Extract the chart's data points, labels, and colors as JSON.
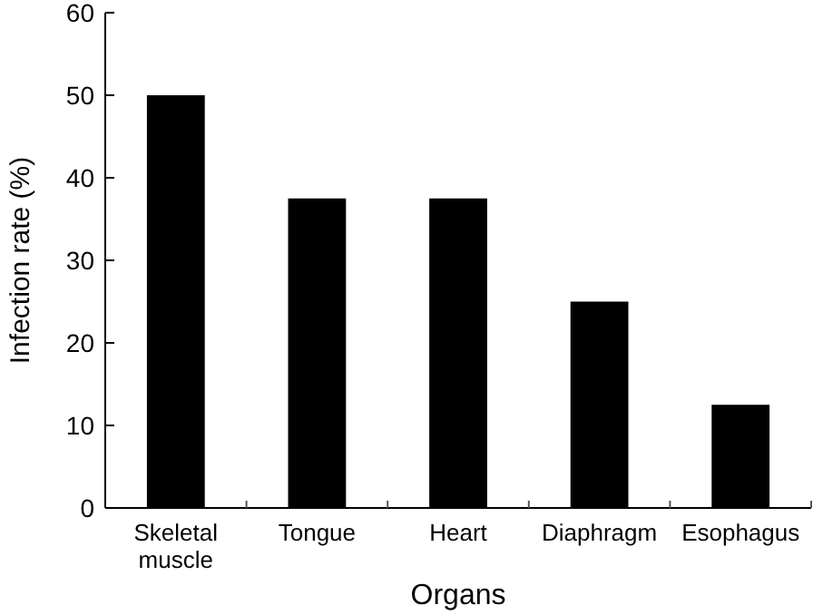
{
  "chart_data": {
    "type": "bar",
    "xlabel": "Organs",
    "ylabel": "Infection rate (%)",
    "categories": [
      "Skeletal muscle",
      "Tongue",
      "Heart",
      "Diaphragm",
      "Esophagus"
    ],
    "values": [
      50,
      37.5,
      37.5,
      25,
      12.5
    ],
    "color": "#000000",
    "ylim": [
      0,
      60
    ],
    "yticks": [
      0,
      10,
      20,
      30,
      40,
      50,
      60
    ],
    "grid": false
  }
}
